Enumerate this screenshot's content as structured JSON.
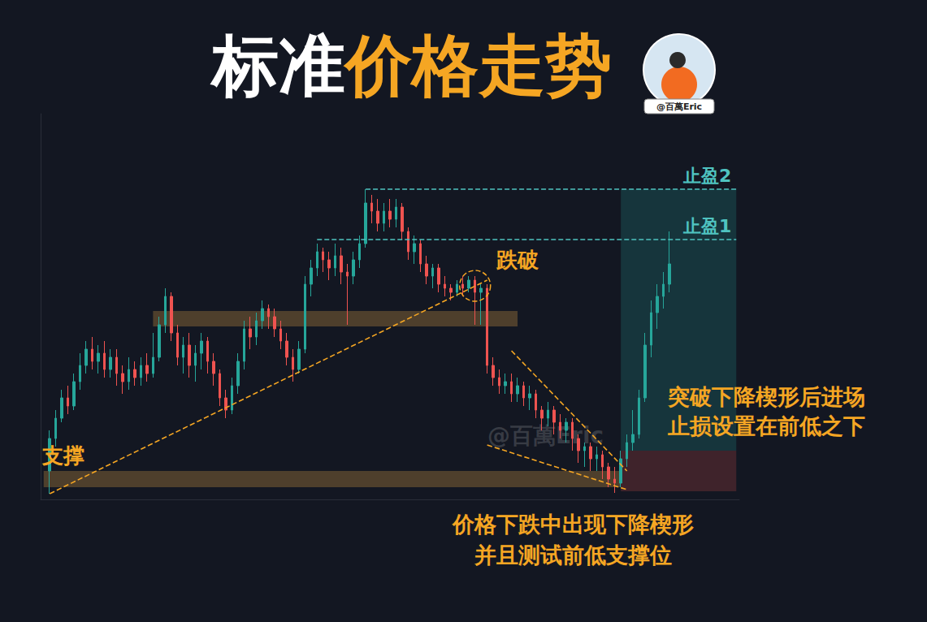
{
  "chart_data": {
    "type": "candlestick",
    "title": "标准价格走势",
    "author": "@百萬Eric",
    "watermark": "@百萬Eric",
    "tick_labels": false,
    "grid": false,
    "ylim": [
      5,
      100
    ],
    "categories": [
      null,
      null,
      null,
      null,
      null,
      null,
      null,
      null,
      null,
      null,
      null,
      null,
      null,
      null,
      null,
      null,
      null,
      null,
      null,
      null,
      null,
      null,
      null,
      null,
      null,
      null,
      null,
      null,
      null,
      null,
      null,
      null,
      null,
      null,
      null,
      null,
      null,
      null,
      null,
      null,
      null,
      null,
      null,
      null,
      null,
      null,
      null,
      null,
      null,
      null,
      null,
      null,
      null,
      null,
      null,
      null,
      null,
      null,
      null,
      null,
      null,
      null,
      null,
      null,
      null,
      null,
      null,
      null,
      null,
      null,
      null,
      null,
      null,
      null,
      null,
      null,
      null,
      null,
      null,
      null,
      null,
      null,
      null,
      null,
      null,
      null,
      null,
      null,
      null,
      null,
      null,
      null,
      null,
      null,
      null,
      null,
      null,
      null,
      null,
      null,
      null,
      null,
      null,
      null,
      null,
      null,
      null,
      null,
      null,
      null,
      null,
      null,
      null,
      null,
      null
    ],
    "values": [
      null,
      [
        12,
        20,
        6.4,
        22
      ],
      [
        20,
        25,
        18,
        27
      ],
      [
        25,
        30,
        24,
        32
      ],
      [
        30,
        28,
        26,
        33
      ],
      [
        28,
        34,
        27,
        36
      ],
      [
        34,
        38,
        32,
        41
      ],
      [
        38,
        42,
        36,
        44
      ],
      [
        42,
        39,
        37,
        45
      ],
      [
        39,
        41,
        36,
        43
      ],
      [
        41,
        37,
        35,
        44
      ],
      [
        37,
        40,
        35,
        42
      ],
      [
        40,
        36,
        33,
        42
      ],
      [
        36,
        34,
        31,
        38
      ],
      [
        34,
        37,
        32,
        40
      ],
      [
        37,
        35,
        33,
        39
      ],
      [
        35,
        38,
        33,
        40
      ],
      [
        38,
        36,
        34,
        41
      ],
      [
        36,
        40,
        35,
        46
      ],
      [
        40,
        48,
        39,
        50
      ],
      [
        48,
        55,
        46,
        57
      ],
      [
        55,
        46,
        44,
        56
      ],
      [
        46,
        40,
        38,
        48
      ],
      [
        40,
        43,
        36,
        45
      ],
      [
        43,
        38,
        35,
        46
      ],
      [
        38,
        41,
        34,
        43
      ],
      [
        41,
        44,
        37,
        46
      ],
      [
        44,
        39,
        36,
        45
      ],
      [
        39,
        36,
        33,
        41
      ],
      [
        36,
        30,
        28,
        37
      ],
      [
        30,
        27,
        25,
        32
      ],
      [
        27,
        33,
        26,
        35
      ],
      [
        33,
        39,
        31,
        41
      ],
      [
        39,
        47,
        37,
        49
      ],
      [
        47,
        45,
        42,
        50
      ],
      [
        45,
        49,
        43,
        51
      ],
      [
        49,
        52,
        47,
        54
      ],
      [
        52,
        50,
        47,
        53
      ],
      [
        50,
        47,
        45,
        52
      ],
      [
        47,
        44,
        42,
        49
      ],
      [
        44,
        40,
        38,
        46
      ],
      [
        40,
        37,
        34,
        42
      ],
      [
        37,
        42,
        36,
        44
      ],
      [
        42,
        58,
        41,
        60
      ],
      [
        58,
        62,
        55,
        64
      ],
      [
        62,
        66,
        60,
        68
      ],
      [
        66,
        64,
        61,
        67
      ],
      [
        64,
        62,
        59,
        66
      ],
      [
        62,
        65,
        60,
        68
      ],
      [
        65,
        61,
        58,
        67
      ],
      [
        61,
        60,
        48,
        63
      ],
      [
        60,
        64,
        58,
        66
      ],
      [
        64,
        68,
        62,
        70
      ],
      [
        68,
        78,
        67,
        81.4
      ],
      [
        78,
        76,
        73,
        80
      ],
      [
        76,
        73,
        71,
        79
      ],
      [
        73,
        76,
        71,
        78
      ],
      [
        76,
        74,
        72,
        79
      ],
      [
        74,
        77,
        72,
        79
      ],
      [
        77,
        71,
        69,
        78
      ],
      [
        71,
        66,
        64,
        72
      ],
      [
        66,
        68,
        63,
        70
      ],
      [
        68,
        63,
        61,
        69
      ],
      [
        63,
        60,
        58,
        65
      ],
      [
        60,
        62,
        57,
        63
      ],
      [
        62,
        58,
        56,
        63
      ],
      [
        58,
        57,
        55,
        60
      ],
      [
        57,
        56,
        54,
        58
      ],
      [
        56,
        58,
        55,
        59
      ],
      [
        58,
        57,
        55,
        60
      ],
      [
        57,
        59,
        56,
        60
      ],
      [
        59,
        56,
        48,
        60
      ],
      [
        56,
        57,
        48,
        58
      ],
      [
        57,
        38,
        36,
        58
      ],
      [
        38,
        35,
        33,
        40
      ],
      [
        35,
        33,
        31,
        37
      ],
      [
        33,
        34,
        31,
        36
      ],
      [
        34,
        31,
        29,
        36
      ],
      [
        31,
        33,
        29,
        35
      ],
      [
        33,
        30,
        28,
        34
      ],
      [
        30,
        31,
        27,
        33
      ],
      [
        31,
        27,
        25,
        32
      ],
      [
        27,
        25,
        22,
        28
      ],
      [
        25,
        27,
        23,
        29
      ],
      [
        27,
        24,
        21,
        28
      ],
      [
        24,
        22,
        20,
        26
      ],
      [
        22,
        24,
        19,
        25
      ],
      [
        24,
        20,
        17,
        25
      ],
      [
        20,
        17,
        14,
        21
      ],
      [
        17,
        18,
        13,
        19
      ],
      [
        18,
        15,
        12,
        19
      ],
      [
        15,
        16,
        12,
        18
      ],
      [
        16,
        13,
        10,
        17
      ],
      [
        13,
        10,
        8,
        14
      ],
      [
        10,
        9,
        6.6,
        13
      ],
      [
        9,
        15,
        8,
        17
      ],
      [
        15,
        19,
        13,
        21
      ],
      [
        19,
        21,
        17,
        27
      ],
      [
        21,
        30,
        20,
        32
      ],
      [
        30,
        43,
        29,
        46
      ],
      [
        43,
        51,
        40,
        54
      ],
      [
        51,
        55,
        47,
        58
      ],
      [
        55,
        58,
        52,
        61
      ],
      [
        58,
        63,
        56,
        71
      ],
      null,
      null,
      null,
      null,
      null,
      null,
      null,
      null,
      null,
      null,
      null
    ],
    "zones": [
      {
        "label": "支撑",
        "low": 8,
        "high": 12,
        "x": [
          0,
          95
        ]
      },
      {
        "low": 47.6,
        "high": 51.4,
        "x": [
          18,
          78
        ]
      }
    ],
    "trendlines": [
      {
        "from": [
          1,
          6.4
        ],
        "to": [
          73,
          59
        ]
      },
      {
        "from": [
          77,
          41.6
        ],
        "to": [
          96,
          12
        ]
      },
      {
        "from": [
          73,
          18.4
        ],
        "to": [
          96,
          7.4
        ]
      }
    ],
    "break_point": {
      "label": "跌破",
      "x": 71,
      "y": 57.6
    },
    "take_profit": [
      {
        "label": "止盈1",
        "value": 69,
        "from": 45
      },
      {
        "label": "止盈2",
        "value": 81.4,
        "from": 53
      }
    ],
    "position": {
      "entry": 17,
      "stop": 7,
      "from": 95
    },
    "entry_note": [
      "突破下降楔形后进场",
      "止损设置在前低之下"
    ],
    "wedge_note": [
      "价格下跌中出现下降楔形",
      "并且测试前低支撑位"
    ]
  }
}
